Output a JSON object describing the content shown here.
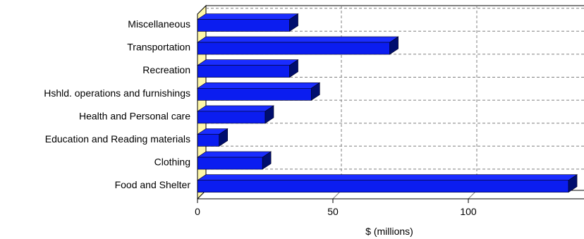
{
  "chart_data": {
    "type": "bar",
    "orientation": "horizontal",
    "style": "3d",
    "categories": [
      "Miscellaneous",
      "Transportation",
      "Recreation",
      "Hshld. operations and furnishings",
      "Health and Personal care",
      "Education and Reading materials",
      "Clothing",
      "Food and Shelter"
    ],
    "values": [
      34,
      71,
      34,
      42,
      25,
      8,
      24,
      137
    ],
    "xlabel": "$ (millions)",
    "ylabel": "",
    "xlim": [
      0,
      140
    ],
    "xticks": [
      0,
      50,
      100
    ],
    "grid": true,
    "legend": "none",
    "colors": {
      "bar_front": "#0b1df0",
      "bar_top": "#1a2dff",
      "bar_side": "#000e6e",
      "wall": "#fff7a8",
      "grid": "#808080"
    }
  }
}
